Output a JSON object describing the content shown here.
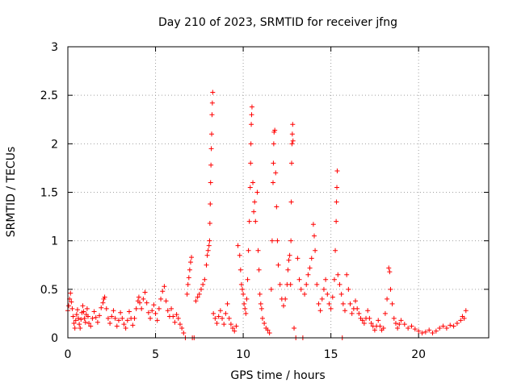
{
  "chart_data": {
    "type": "scatter",
    "title": "Day 210 of 2023, SRMTID for receiver jfng",
    "xlabel": "GPS time / hours",
    "ylabel": "SRMTID / TECUs",
    "xlim": [
      0,
      24
    ],
    "ylim": [
      0,
      3
    ],
    "xticks": [
      0,
      5,
      10,
      15,
      20
    ],
    "yticks": [
      0,
      0.5,
      1,
      1.5,
      2,
      2.5,
      3
    ],
    "xtick_labels": [
      "0",
      "5",
      "10",
      "15",
      "20"
    ],
    "ytick_labels": [
      "0",
      "0.5",
      "1",
      "1.5",
      "2",
      "2.5",
      "3"
    ],
    "grid": true,
    "marker": "+",
    "series": [
      {
        "name": "SRMTID",
        "color": "#ff0000",
        "points": [
          [
            0.0,
            0.28
          ],
          [
            0.05,
            0.33
          ],
          [
            0.1,
            0.4
          ],
          [
            0.15,
            0.46
          ],
          [
            0.2,
            0.37
          ],
          [
            0.25,
            0.3
          ],
          [
            0.3,
            0.22
          ],
          [
            0.35,
            0.15
          ],
          [
            0.4,
            0.1
          ],
          [
            0.45,
            0.18
          ],
          [
            0.5,
            0.24
          ],
          [
            0.55,
            0.29
          ],
          [
            0.6,
            0.2
          ],
          [
            0.65,
            0.14
          ],
          [
            0.7,
            0.1
          ],
          [
            0.75,
            0.19
          ],
          [
            0.8,
            0.26
          ],
          [
            0.85,
            0.33
          ],
          [
            0.9,
            0.27
          ],
          [
            0.95,
            0.2
          ],
          [
            1.0,
            0.16
          ],
          [
            1.05,
            0.24
          ],
          [
            1.1,
            0.3
          ],
          [
            1.15,
            0.22
          ],
          [
            1.2,
            0.15
          ],
          [
            1.3,
            0.12
          ],
          [
            1.4,
            0.2
          ],
          [
            1.5,
            0.27
          ],
          [
            1.6,
            0.21
          ],
          [
            1.7,
            0.16
          ],
          [
            1.8,
            0.23
          ],
          [
            1.9,
            0.31
          ],
          [
            2.0,
            0.36
          ],
          [
            2.05,
            0.4
          ],
          [
            2.1,
            0.42
          ],
          [
            2.2,
            0.3
          ],
          [
            2.3,
            0.2
          ],
          [
            2.4,
            0.15
          ],
          [
            2.5,
            0.22
          ],
          [
            2.6,
            0.28
          ],
          [
            2.7,
            0.2
          ],
          [
            2.8,
            0.12
          ],
          [
            2.9,
            0.18
          ],
          [
            3.0,
            0.26
          ],
          [
            3.1,
            0.2
          ],
          [
            3.2,
            0.14
          ],
          [
            3.3,
            0.1
          ],
          [
            3.4,
            0.18
          ],
          [
            3.5,
            0.27
          ],
          [
            3.6,
            0.2
          ],
          [
            3.7,
            0.13
          ],
          [
            3.8,
            0.2
          ],
          [
            3.9,
            0.3
          ],
          [
            4.0,
            0.38
          ],
          [
            4.05,
            0.42
          ],
          [
            4.1,
            0.36
          ],
          [
            4.2,
            0.3
          ],
          [
            4.3,
            0.4
          ],
          [
            4.4,
            0.47
          ],
          [
            4.5,
            0.36
          ],
          [
            4.6,
            0.26
          ],
          [
            4.7,
            0.2
          ],
          [
            4.8,
            0.28
          ],
          [
            4.9,
            0.34
          ],
          [
            5.0,
            0.25
          ],
          [
            5.1,
            0.18
          ],
          [
            5.2,
            0.3
          ],
          [
            5.3,
            0.4
          ],
          [
            5.4,
            0.48
          ],
          [
            5.5,
            0.53
          ],
          [
            5.6,
            0.38
          ],
          [
            5.7,
            0.28
          ],
          [
            5.8,
            0.22
          ],
          [
            5.9,
            0.3
          ],
          [
            6.0,
            0.22
          ],
          [
            6.1,
            0.16
          ],
          [
            6.2,
            0.24
          ],
          [
            6.3,
            0.2
          ],
          [
            6.4,
            0.14
          ],
          [
            6.5,
            0.1
          ],
          [
            6.6,
            0.05
          ],
          [
            6.7,
            0.0
          ],
          [
            6.8,
            0.45
          ],
          [
            6.85,
            0.55
          ],
          [
            6.9,
            0.62
          ],
          [
            6.95,
            0.7
          ],
          [
            7.0,
            0.78
          ],
          [
            7.05,
            0.83
          ],
          [
            7.1,
            0.0
          ],
          [
            7.2,
            0.0
          ],
          [
            7.3,
            0.38
          ],
          [
            7.4,
            0.42
          ],
          [
            7.5,
            0.45
          ],
          [
            7.6,
            0.5
          ],
          [
            7.7,
            0.55
          ],
          [
            7.8,
            0.6
          ],
          [
            7.9,
            0.75
          ],
          [
            7.95,
            0.85
          ],
          [
            8.0,
            0.9
          ],
          [
            8.05,
            0.95
          ],
          [
            8.08,
            1.0
          ],
          [
            8.1,
            1.18
          ],
          [
            8.12,
            1.38
          ],
          [
            8.14,
            1.6
          ],
          [
            8.16,
            1.78
          ],
          [
            8.18,
            1.95
          ],
          [
            8.2,
            2.1
          ],
          [
            8.22,
            2.3
          ],
          [
            8.24,
            2.42
          ],
          [
            8.26,
            2.53
          ],
          [
            8.3,
            0.25
          ],
          [
            8.4,
            0.2
          ],
          [
            8.5,
            0.15
          ],
          [
            8.6,
            0.22
          ],
          [
            8.7,
            0.28
          ],
          [
            8.8,
            0.2
          ],
          [
            8.9,
            0.14
          ],
          [
            9.0,
            0.25
          ],
          [
            9.1,
            0.35
          ],
          [
            9.2,
            0.2
          ],
          [
            9.3,
            0.14
          ],
          [
            9.4,
            0.1
          ],
          [
            9.5,
            0.07
          ],
          [
            9.6,
            0.12
          ],
          [
            9.7,
            0.95
          ],
          [
            9.8,
            0.85
          ],
          [
            9.85,
            0.7
          ],
          [
            9.9,
            0.55
          ],
          [
            9.95,
            0.5
          ],
          [
            10.0,
            0.45
          ],
          [
            10.05,
            0.35
          ],
          [
            10.1,
            0.3
          ],
          [
            10.15,
            0.25
          ],
          [
            10.2,
            0.4
          ],
          [
            10.25,
            0.6
          ],
          [
            10.3,
            0.9
          ],
          [
            10.35,
            1.2
          ],
          [
            10.4,
            1.55
          ],
          [
            10.42,
            1.8
          ],
          [
            10.44,
            2.0
          ],
          [
            10.46,
            2.2
          ],
          [
            10.48,
            2.3
          ],
          [
            10.5,
            2.38
          ],
          [
            10.55,
            1.6
          ],
          [
            10.6,
            1.3
          ],
          [
            10.65,
            1.4
          ],
          [
            10.7,
            1.2
          ],
          [
            10.8,
            1.5
          ],
          [
            10.85,
            0.9
          ],
          [
            10.9,
            0.7
          ],
          [
            10.95,
            0.45
          ],
          [
            11.0,
            0.35
          ],
          [
            11.05,
            0.3
          ],
          [
            11.1,
            0.2
          ],
          [
            11.2,
            0.15
          ],
          [
            11.3,
            0.1
          ],
          [
            11.4,
            0.08
          ],
          [
            11.5,
            0.05
          ],
          [
            11.6,
            0.5
          ],
          [
            11.65,
            1.0
          ],
          [
            11.7,
            1.6
          ],
          [
            11.72,
            1.8
          ],
          [
            11.74,
            2.0
          ],
          [
            11.76,
            2.12
          ],
          [
            11.8,
            2.14
          ],
          [
            11.85,
            1.7
          ],
          [
            11.9,
            1.35
          ],
          [
            11.95,
            1.0
          ],
          [
            12.0,
            0.75
          ],
          [
            12.1,
            0.55
          ],
          [
            12.2,
            0.4
          ],
          [
            12.3,
            0.33
          ],
          [
            12.4,
            0.4
          ],
          [
            12.5,
            0.55
          ],
          [
            12.55,
            0.7
          ],
          [
            12.6,
            0.8
          ],
          [
            12.65,
            0.85
          ],
          [
            12.7,
            0.55
          ],
          [
            12.72,
            1.0
          ],
          [
            12.74,
            1.4
          ],
          [
            12.76,
            1.8
          ],
          [
            12.78,
            2.0
          ],
          [
            12.8,
            2.1
          ],
          [
            12.82,
            2.2
          ],
          [
            12.84,
            2.03
          ],
          [
            12.9,
            0.1
          ],
          [
            13.0,
            0.0
          ],
          [
            13.1,
            0.82
          ],
          [
            13.2,
            0.6
          ],
          [
            13.3,
            0.5
          ],
          [
            13.4,
            0.0
          ],
          [
            13.5,
            0.45
          ],
          [
            13.6,
            0.55
          ],
          [
            13.7,
            0.65
          ],
          [
            13.8,
            0.72
          ],
          [
            13.9,
            0.82
          ],
          [
            14.0,
            1.17
          ],
          [
            14.05,
            1.05
          ],
          [
            14.1,
            0.9
          ],
          [
            14.2,
            0.55
          ],
          [
            14.3,
            0.35
          ],
          [
            14.4,
            0.28
          ],
          [
            14.5,
            0.4
          ],
          [
            14.6,
            0.5
          ],
          [
            14.7,
            0.6
          ],
          [
            14.8,
            0.45
          ],
          [
            14.9,
            0.35
          ],
          [
            15.0,
            0.3
          ],
          [
            15.1,
            0.42
          ],
          [
            15.2,
            0.6
          ],
          [
            15.25,
            0.9
          ],
          [
            15.3,
            1.2
          ],
          [
            15.32,
            1.4
          ],
          [
            15.34,
            1.55
          ],
          [
            15.36,
            1.72
          ],
          [
            15.4,
            0.65
          ],
          [
            15.5,
            0.55
          ],
          [
            15.6,
            0.45
          ],
          [
            15.65,
            0.0
          ],
          [
            15.7,
            0.35
          ],
          [
            15.8,
            0.28
          ],
          [
            15.9,
            0.65
          ],
          [
            16.0,
            0.5
          ],
          [
            16.1,
            0.35
          ],
          [
            16.2,
            0.25
          ],
          [
            16.3,
            0.3
          ],
          [
            16.4,
            0.38
          ],
          [
            16.5,
            0.3
          ],
          [
            16.6,
            0.25
          ],
          [
            16.7,
            0.2
          ],
          [
            16.8,
            0.18
          ],
          [
            16.9,
            0.15
          ],
          [
            17.0,
            0.2
          ],
          [
            17.1,
            0.28
          ],
          [
            17.2,
            0.2
          ],
          [
            17.3,
            0.15
          ],
          [
            17.4,
            0.12
          ],
          [
            17.5,
            0.08
          ],
          [
            17.6,
            0.12
          ],
          [
            17.7,
            0.18
          ],
          [
            17.8,
            0.12
          ],
          [
            17.9,
            0.08
          ],
          [
            18.0,
            0.1
          ],
          [
            18.1,
            0.25
          ],
          [
            18.2,
            0.4
          ],
          [
            18.3,
            0.72
          ],
          [
            18.35,
            0.68
          ],
          [
            18.4,
            0.5
          ],
          [
            18.5,
            0.35
          ],
          [
            18.6,
            0.2
          ],
          [
            18.7,
            0.15
          ],
          [
            18.8,
            0.1
          ],
          [
            18.9,
            0.14
          ],
          [
            19.0,
            0.18
          ],
          [
            19.2,
            0.14
          ],
          [
            19.4,
            0.1
          ],
          [
            19.6,
            0.12
          ],
          [
            19.8,
            0.09
          ],
          [
            20.0,
            0.07
          ],
          [
            20.2,
            0.05
          ],
          [
            20.4,
            0.06
          ],
          [
            20.6,
            0.08
          ],
          [
            20.8,
            0.05
          ],
          [
            21.0,
            0.07
          ],
          [
            21.2,
            0.1
          ],
          [
            21.4,
            0.12
          ],
          [
            21.6,
            0.1
          ],
          [
            21.8,
            0.13
          ],
          [
            22.0,
            0.12
          ],
          [
            22.2,
            0.15
          ],
          [
            22.4,
            0.18
          ],
          [
            22.5,
            0.22
          ],
          [
            22.6,
            0.2
          ],
          [
            22.7,
            0.28
          ]
        ]
      }
    ]
  }
}
